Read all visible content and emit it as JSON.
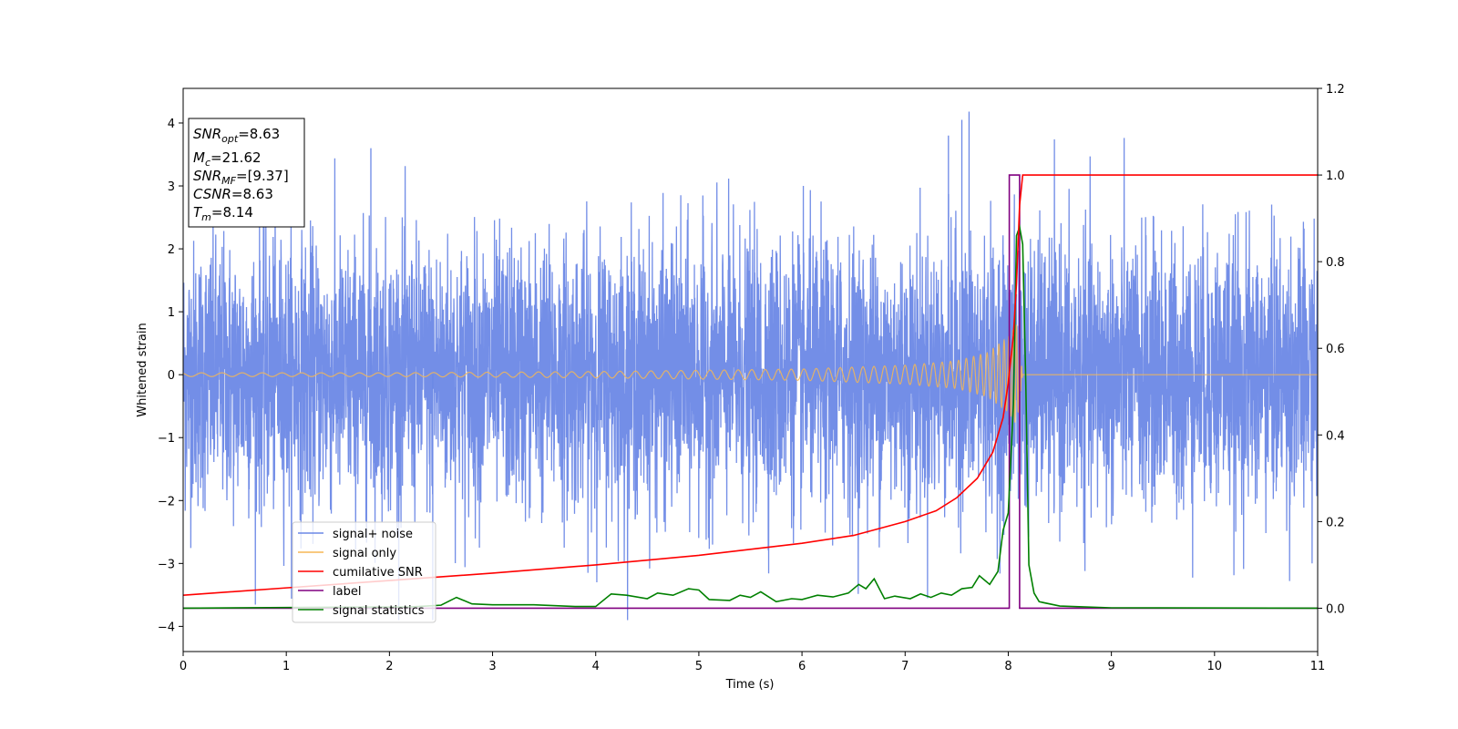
{
  "chart_data": {
    "type": "line",
    "xlabel": "Time (s)",
    "ylabel": "Whitened strain",
    "xlim": [
      0,
      11
    ],
    "ylim": [
      -4.4,
      4.55
    ],
    "y2lim": [
      -0.1,
      1.2
    ],
    "x_ticks": [
      "0",
      "1",
      "2",
      "3",
      "4",
      "5",
      "6",
      "7",
      "8",
      "9",
      "10",
      "11"
    ],
    "y_ticks": [
      "4",
      "3",
      "2",
      "1",
      "0",
      "−1",
      "−2",
      "−3",
      "−4"
    ],
    "y2_ticks": [
      "1.2",
      "1.0",
      "0.8",
      "0.6",
      "0.4",
      "0.2",
      "0.0"
    ],
    "info_box": {
      "snr_opt": {
        "base": "SNR",
        "sub": "opt",
        "value": "=8.63"
      },
      "mc": {
        "base": "M",
        "sub": "c",
        "value": "=21.62"
      },
      "snr_mf": {
        "base": "SNR",
        "sub": "MF",
        "value": "=[9.37]"
      },
      "csnr": {
        "base": "CSNR",
        "value": "=8.63"
      },
      "tm": {
        "base": "T",
        "sub": "m",
        "value": "=8.14"
      }
    },
    "series": [
      {
        "name": "signal+ noise",
        "color": "#6b88e6",
        "axis": "left",
        "description": "whitened noise plus signal, approx. unit variance, peaks near 4.2 at t≈7.6"
      },
      {
        "name": "signal only",
        "color": "#f5b755",
        "axis": "left",
        "description": "chirp waveform growing in amplitude until merger near t≈8.1",
        "points": [
          [
            0,
            0.03
          ],
          [
            2,
            0.03
          ],
          [
            4,
            0.05
          ],
          [
            6,
            0.09
          ],
          [
            7,
            0.15
          ],
          [
            7.5,
            0.22
          ],
          [
            7.8,
            0.35
          ],
          [
            8.0,
            0.6
          ],
          [
            8.08,
            0.8
          ],
          [
            8.14,
            0
          ],
          [
            11,
            0
          ]
        ]
      },
      {
        "name": "cumilative SNR",
        "color": "#ff0000",
        "axis": "right",
        "points": [
          [
            0,
            0.03
          ],
          [
            1,
            0.047
          ],
          [
            2,
            0.064
          ],
          [
            3,
            0.081
          ],
          [
            4,
            0.1
          ],
          [
            5,
            0.122
          ],
          [
            6,
            0.15
          ],
          [
            6.5,
            0.168
          ],
          [
            7,
            0.2
          ],
          [
            7.3,
            0.225
          ],
          [
            7.5,
            0.255
          ],
          [
            7.7,
            0.3
          ],
          [
            7.85,
            0.36
          ],
          [
            7.95,
            0.44
          ],
          [
            8.0,
            0.52
          ],
          [
            8.05,
            0.63
          ],
          [
            8.08,
            0.75
          ],
          [
            8.11,
            0.93
          ],
          [
            8.14,
            1.0
          ],
          [
            11,
            1.0
          ]
        ]
      },
      {
        "name": "label",
        "color": "#800080",
        "axis": "right",
        "points": [
          [
            0,
            0
          ],
          [
            8.01,
            0
          ],
          [
            8.01,
            1.0
          ],
          [
            8.11,
            1.0
          ],
          [
            8.11,
            0
          ],
          [
            11,
            0
          ]
        ]
      },
      {
        "name": "signal statistics",
        "color": "#008000",
        "axis": "right",
        "points": [
          [
            0,
            0
          ],
          [
            1.2,
            0.002
          ],
          [
            2.2,
            0.003
          ],
          [
            2.5,
            0.007
          ],
          [
            2.65,
            0.025
          ],
          [
            2.8,
            0.01
          ],
          [
            3.0,
            0.008
          ],
          [
            3.4,
            0.008
          ],
          [
            3.8,
            0.004
          ],
          [
            4.0,
            0.004
          ],
          [
            4.15,
            0.033
          ],
          [
            4.3,
            0.03
          ],
          [
            4.5,
            0.022
          ],
          [
            4.6,
            0.035
          ],
          [
            4.75,
            0.03
          ],
          [
            4.9,
            0.045
          ],
          [
            5.0,
            0.042
          ],
          [
            5.1,
            0.02
          ],
          [
            5.3,
            0.018
          ],
          [
            5.4,
            0.03
          ],
          [
            5.5,
            0.025
          ],
          [
            5.6,
            0.038
          ],
          [
            5.75,
            0.015
          ],
          [
            5.9,
            0.022
          ],
          [
            6.0,
            0.02
          ],
          [
            6.15,
            0.03
          ],
          [
            6.3,
            0.026
          ],
          [
            6.45,
            0.035
          ],
          [
            6.55,
            0.055
          ],
          [
            6.62,
            0.045
          ],
          [
            6.7,
            0.068
          ],
          [
            6.8,
            0.022
          ],
          [
            6.9,
            0.028
          ],
          [
            7.05,
            0.022
          ],
          [
            7.15,
            0.033
          ],
          [
            7.25,
            0.025
          ],
          [
            7.35,
            0.035
          ],
          [
            7.45,
            0.03
          ],
          [
            7.55,
            0.045
          ],
          [
            7.65,
            0.048
          ],
          [
            7.72,
            0.075
          ],
          [
            7.82,
            0.055
          ],
          [
            7.9,
            0.085
          ],
          [
            7.95,
            0.18
          ],
          [
            8.0,
            0.22
          ],
          [
            8.05,
            0.47
          ],
          [
            8.08,
            0.86
          ],
          [
            8.11,
            0.88
          ],
          [
            8.14,
            0.84
          ],
          [
            8.17,
            0.52
          ],
          [
            8.2,
            0.1
          ],
          [
            8.25,
            0.035
          ],
          [
            8.3,
            0.015
          ],
          [
            8.5,
            0.005
          ],
          [
            9,
            0.001
          ],
          [
            11,
            0
          ]
        ]
      }
    ],
    "legend": {
      "placement": "lower-left"
    }
  }
}
